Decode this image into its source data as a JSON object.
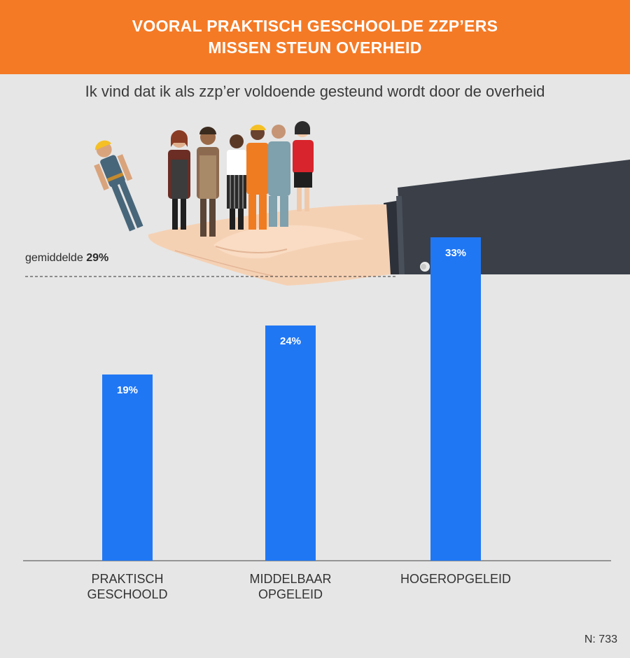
{
  "header": {
    "title_line1": "VOORAL PRAKTISCH GESCHOOLDE ZZP’ERS",
    "title_line2": "MISSEN STEUN OVERHEID"
  },
  "subtitle": "Ik vind dat ik als zzp’er voldoende gesteund wordt door de overheid",
  "average": {
    "prefix": "gemiddelde",
    "value_label": "29%",
    "value": 29
  },
  "chart_data": {
    "type": "bar",
    "categories": [
      [
        "PRAKTISCH",
        "GESCHOOLD"
      ],
      [
        "MIDDELBAAR",
        "OPGELEID"
      ],
      [
        "HOGEROPGELEID"
      ]
    ],
    "values": [
      19,
      24,
      33
    ],
    "value_labels": [
      "19%",
      "24%",
      "33%"
    ],
    "ylim": [
      0,
      37.5
    ],
    "bar_color": "#2077f4",
    "reference_line": 29
  },
  "footer": {
    "n_label": "N: 733"
  },
  "colors": {
    "header_bg": "#f47a26",
    "background": "#e6e6e6",
    "bar": "#2077f4",
    "sleeve": "#3a3f48",
    "skin": "#f5d1b4"
  },
  "illustration": {
    "icons": [
      "hand-icon",
      "suit-sleeve-icon",
      "workers-group-icon"
    ]
  }
}
